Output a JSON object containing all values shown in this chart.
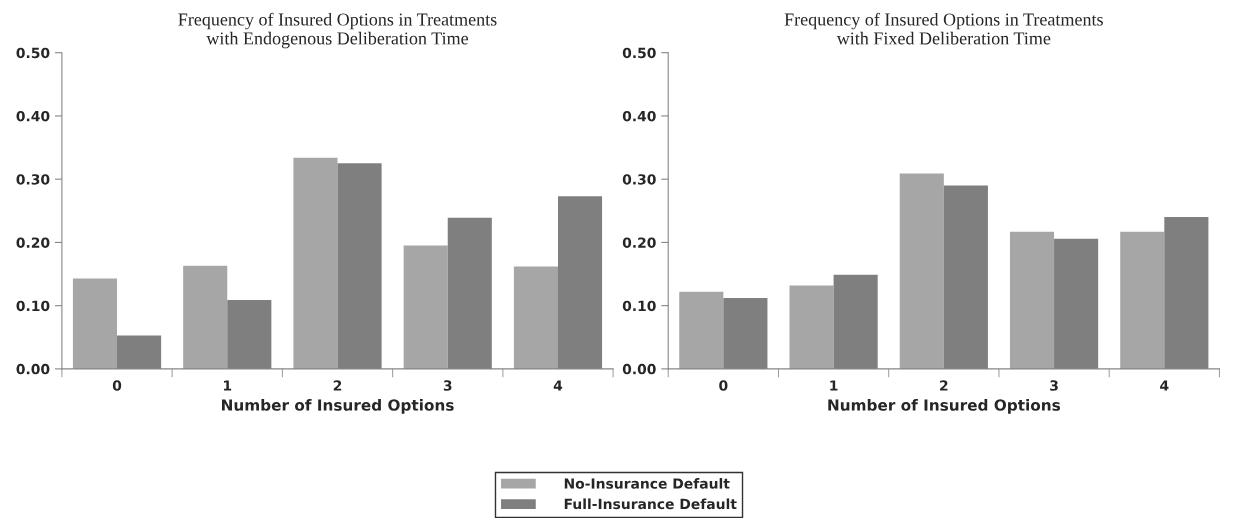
{
  "chart_data": [
    {
      "type": "bar",
      "title": "Frequency of Insured Options in Treatments\nwith Endogenous Deliberation Time",
      "xlabel": "Number of Insured Options",
      "categories": [
        "0",
        "1",
        "2",
        "3",
        "4"
      ],
      "series": [
        {
          "name": "No-Insurance Default",
          "color": "#a6a6a6",
          "values": [
            0.143,
            0.163,
            0.334,
            0.195,
            0.162
          ]
        },
        {
          "name": "Full-Insurance Default",
          "color": "#7f7f7f",
          "values": [
            0.053,
            0.109,
            0.325,
            0.239,
            0.273
          ]
        }
      ],
      "ylim": [
        0,
        0.5
      ],
      "yticks": [
        {
          "value": 0,
          "label": "0.00"
        },
        {
          "value": 0.1,
          "label": "0.10"
        },
        {
          "value": 0.2,
          "label": "0.20"
        },
        {
          "value": 0.3,
          "label": "0.30"
        },
        {
          "value": 0.4,
          "label": "0.40"
        },
        {
          "value": 0.5,
          "label": "0.50"
        }
      ],
      "grid": false,
      "legend": "bottom"
    },
    {
      "type": "bar",
      "title": "Frequency of Insured Options in Treatments\nwith Fixed Deliberation Time",
      "xlabel": "Number of Insured Options",
      "categories": [
        "0",
        "1",
        "2",
        "3",
        "4"
      ],
      "series": [
        {
          "color": "#a6a6a6",
          "values": [
            0.122,
            0.132,
            0.309,
            0.217,
            0.217
          ]
        },
        {
          "color": "#7f7f7f",
          "values": [
            0.112,
            0.149,
            0.29,
            0.206,
            0.24
          ]
        }
      ],
      "ylim": [
        0,
        0.5
      ],
      "yticks": [
        {
          "value": 0,
          "label": "0.00"
        },
        {
          "value": 0.1,
          "label": "0.10"
        },
        {
          "value": 0.2,
          "label": "0.20"
        },
        {
          "value": 0.3,
          "label": "0.30"
        },
        {
          "value": 0.4,
          "label": "0.40"
        },
        {
          "value": 0.5,
          "label": "0.50"
        }
      ],
      "grid": false
    }
  ]
}
